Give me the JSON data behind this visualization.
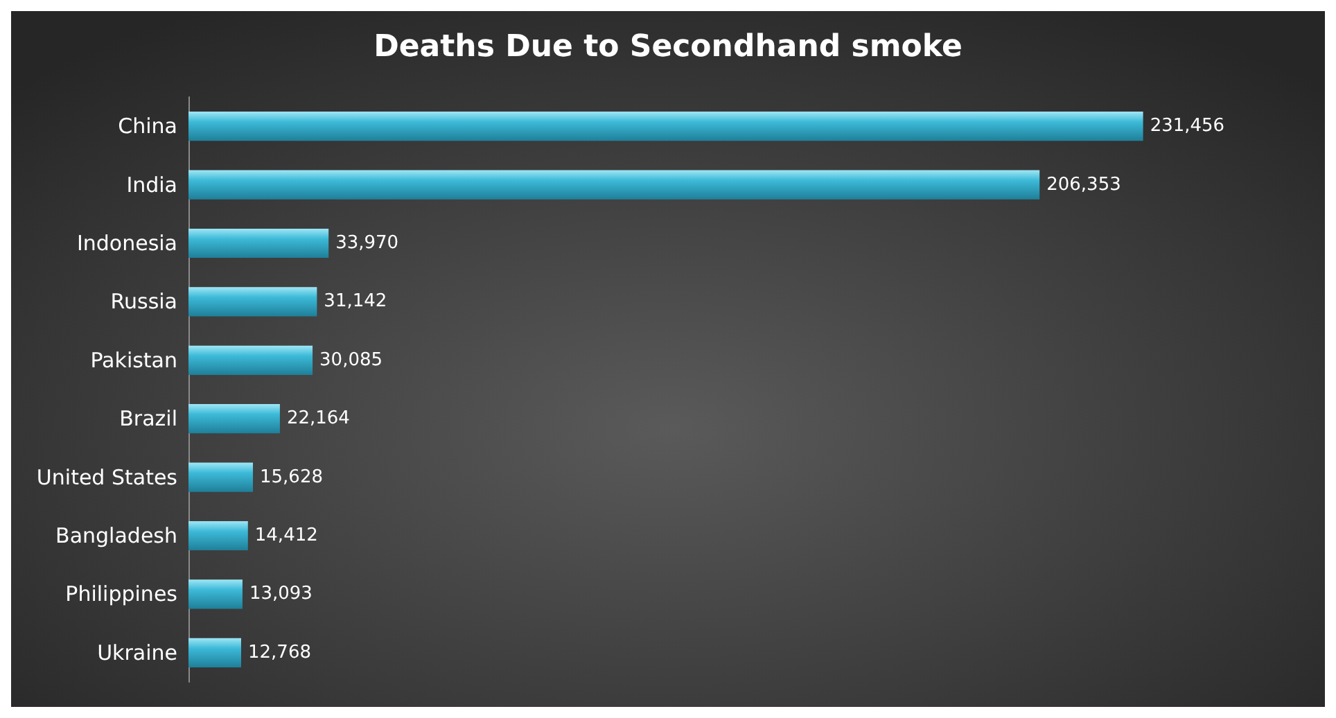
{
  "chart_data": {
    "type": "bar",
    "orientation": "horizontal",
    "title": "Deaths Due to Secondhand smoke",
    "categories": [
      "China",
      "India",
      "Indonesia",
      "Russia",
      "Pakistan",
      "Brazil",
      "United States",
      "Bangladesh",
      "Philippines",
      "Ukraine"
    ],
    "values": [
      231456,
      206353,
      33970,
      31142,
      30085,
      22164,
      15628,
      14412,
      13093,
      12768
    ],
    "value_labels": [
      "231,456",
      "206,353",
      "33,970",
      "31,142",
      "30,085",
      "22,164",
      "15,628",
      "14,412",
      "13,093",
      "12,768"
    ],
    "color": "#3cbad8",
    "tick_labels": "y",
    "grid": false
  }
}
